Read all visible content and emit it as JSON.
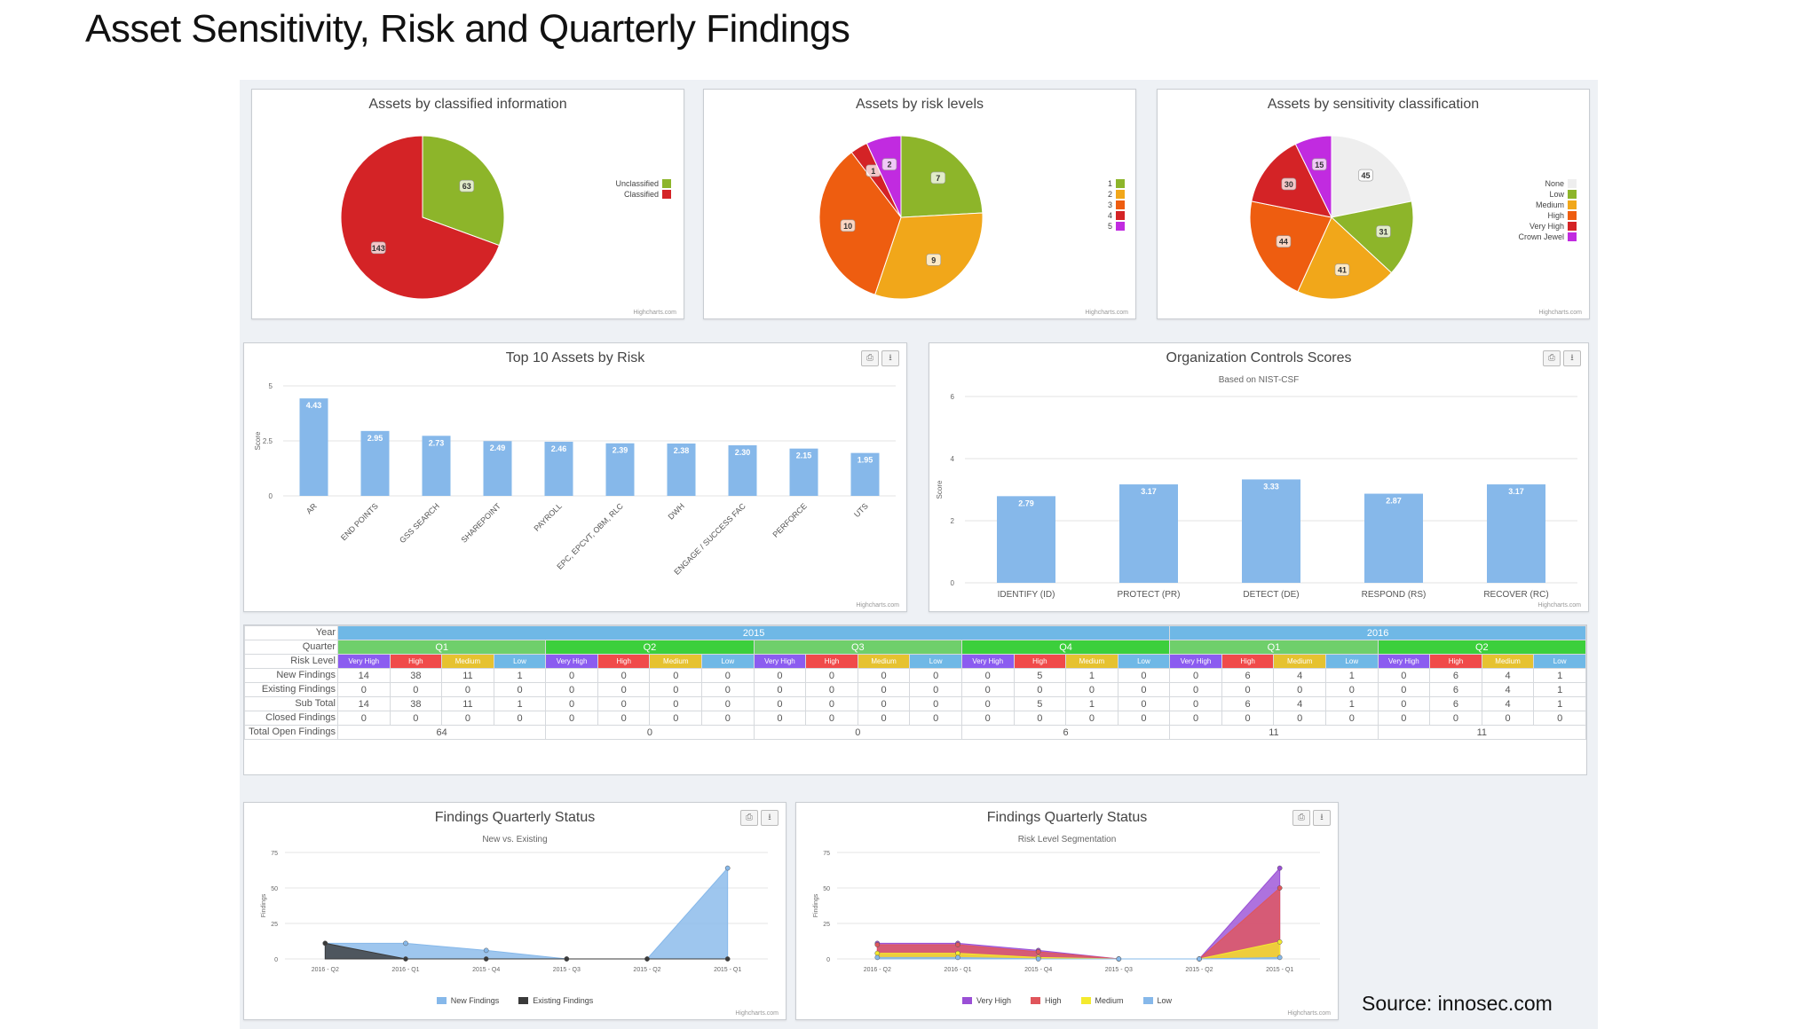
{
  "slide": {
    "title": "Asset Sensitivity, Risk and Quarterly Findings",
    "source": "Source: innosec.com"
  },
  "colors": {
    "green": "#8db52a",
    "red": "#d42326",
    "orange": "#f08a0b",
    "darkorange": "#ee5d10",
    "gold": "#f1a71a",
    "magenta": "#c12be0",
    "blue": "#86b8ea",
    "black": "#3a3a3a",
    "yellow": "#f4ea2e",
    "lightgrey": "#eeeeee"
  },
  "charts": {
    "classified": {
      "title": "Assets by classified information",
      "credit": "Highcharts.com",
      "chart_data": {
        "type": "pie",
        "slices": [
          {
            "label": "Unclassified",
            "value": 63,
            "color": "#8db52a"
          },
          {
            "label": "Classified",
            "value": 143,
            "color": "#d42326"
          }
        ]
      }
    },
    "risk_levels": {
      "title": "Assets by risk levels",
      "credit": "Highcharts.com",
      "chart_data": {
        "type": "pie",
        "slices": [
          {
            "label": "1",
            "value": 7,
            "color": "#8db52a"
          },
          {
            "label": "2",
            "value": 9,
            "color": "#f1a71a"
          },
          {
            "label": "3",
            "value": 10,
            "color": "#ee5d10"
          },
          {
            "label": "4",
            "value": 1,
            "color": "#d42326"
          },
          {
            "label": "5",
            "value": 2,
            "color": "#c12be0"
          }
        ]
      }
    },
    "sensitivity": {
      "title": "Assets by sensitivity classification",
      "credit": "Highcharts.com",
      "chart_data": {
        "type": "pie",
        "slices": [
          {
            "label": "None",
            "value": 45,
            "color": "#eeeeee"
          },
          {
            "label": "Low",
            "value": 31,
            "color": "#8db52a"
          },
          {
            "label": "Medium",
            "value": 41,
            "color": "#f1a71a"
          },
          {
            "label": "High",
            "value": 44,
            "color": "#ee5d10"
          },
          {
            "label": "Very High",
            "value": 30,
            "color": "#d42326"
          },
          {
            "label": "Crown Jewel",
            "value": 15,
            "color": "#c12be0"
          }
        ]
      }
    },
    "top10": {
      "title": "Top 10 Assets by Risk",
      "credit": "Highcharts.com",
      "chart_data": {
        "type": "bar",
        "categories": [
          "AR",
          "END POINTS",
          "GSS SEARCH",
          "SHAREPOINT",
          "PAYROLL",
          "EPC, EPCVT, OBM, RLC",
          "DWH",
          "ENGAGE / SUCCESS FAC",
          "PERFORCE",
          "UTS"
        ],
        "values": [
          4.43,
          2.95,
          2.73,
          2.49,
          2.46,
          2.39,
          2.38,
          2.3,
          2.15,
          1.95
        ],
        "ylabel": "Score",
        "ylim": [
          0,
          5
        ],
        "yticks": [
          "0",
          "2.5",
          "5"
        ]
      }
    },
    "controls": {
      "title": "Organization Controls Scores",
      "subtitle": "Based on NIST-CSF",
      "credit": "Highcharts.com",
      "chart_data": {
        "type": "bar",
        "categories": [
          "IDENTIFY (ID)",
          "PROTECT (PR)",
          "DETECT (DE)",
          "RESPOND (RS)",
          "RECOVER (RC)"
        ],
        "values": [
          2.79,
          3.17,
          3.33,
          2.87,
          3.17
        ],
        "ylabel": "Score",
        "ylim": [
          0,
          6
        ],
        "yticks": [
          "0",
          "2",
          "4",
          "6"
        ]
      }
    },
    "fqs1": {
      "title": "Findings Quarterly Status",
      "subtitle": "New vs. Existing",
      "credit": "Highcharts.com",
      "chart_data": {
        "type": "area",
        "x": [
          "2016 - Q2",
          "2016 - Q1",
          "2015 - Q4",
          "2015 - Q3",
          "2015 - Q2",
          "2015 - Q1"
        ],
        "ylabel": "Findings",
        "ylim": [
          0,
          75
        ],
        "yticks": [
          "0",
          "25",
          "50",
          "75"
        ],
        "series": [
          {
            "name": "New Findings",
            "values": [
              11,
              11,
              6,
              0,
              0,
              64
            ],
            "color": "#86b8ea"
          },
          {
            "name": "Existing Findings",
            "values": [
              11,
              0,
              0,
              0,
              0,
              0
            ],
            "color": "#3a3a3a"
          }
        ]
      }
    },
    "fqs2": {
      "title": "Findings Quarterly Status",
      "subtitle": "Risk Level Segmentation",
      "credit": "Highcharts.com",
      "chart_data": {
        "type": "area",
        "x": [
          "2016 - Q2",
          "2016 - Q1",
          "2015 - Q4",
          "2015 - Q3",
          "2015 - Q2",
          "2015 - Q1"
        ],
        "ylabel": "Findings",
        "ylim": [
          0,
          75
        ],
        "yticks": [
          "0",
          "25",
          "50",
          "75"
        ],
        "series": [
          {
            "name": "Very High",
            "values": [
              11,
              11,
              6,
              0,
              0,
              64
            ],
            "color": "#9a4fd6"
          },
          {
            "name": "High",
            "values": [
              10,
              10,
              5,
              0,
              0,
              50
            ],
            "color": "#e0555b"
          },
          {
            "name": "Medium",
            "values": [
              4,
              4,
              1,
              0,
              0,
              12
            ],
            "color": "#f4ea2e"
          },
          {
            "name": "Low",
            "values": [
              1,
              1,
              0,
              0,
              0,
              1
            ],
            "color": "#86b8ea"
          }
        ]
      }
    }
  },
  "table": {
    "labels": {
      "year": "Year",
      "quarter": "Quarter",
      "risk": "Risk Level",
      "new": "New Findings",
      "existing": "Existing Findings",
      "subtotal": "Sub Total",
      "closed": "Closed Findings",
      "total": "Total Open Findings"
    },
    "years": [
      {
        "label": "2015",
        "span": 16
      },
      {
        "label": "2016",
        "span": 8
      }
    ],
    "quarters": [
      "Q1",
      "Q2",
      "Q3",
      "Q4",
      "Q1",
      "Q2"
    ],
    "risk_levels": [
      "Very High",
      "High",
      "Medium",
      "Low"
    ],
    "risk_colors": [
      "#8b5cf0",
      "#f04a4a",
      "#e6c230",
      "#6fb8e6"
    ],
    "new": [
      14,
      38,
      11,
      1,
      0,
      0,
      0,
      0,
      0,
      0,
      0,
      0,
      0,
      5,
      1,
      0,
      0,
      6,
      4,
      1,
      0,
      6,
      4,
      1
    ],
    "existing": [
      0,
      0,
      0,
      0,
      0,
      0,
      0,
      0,
      0,
      0,
      0,
      0,
      0,
      0,
      0,
      0,
      0,
      0,
      0,
      0,
      0,
      6,
      4,
      1
    ],
    "subtotal": [
      14,
      38,
      11,
      1,
      0,
      0,
      0,
      0,
      0,
      0,
      0,
      0,
      0,
      5,
      1,
      0,
      0,
      6,
      4,
      1,
      0,
      6,
      4,
      1
    ],
    "closed": [
      0,
      0,
      0,
      0,
      0,
      0,
      0,
      0,
      0,
      0,
      0,
      0,
      0,
      0,
      0,
      0,
      0,
      0,
      0,
      0,
      0,
      0,
      0,
      0
    ],
    "total": [
      "64",
      "0",
      "0",
      "6",
      "11",
      "11"
    ]
  }
}
